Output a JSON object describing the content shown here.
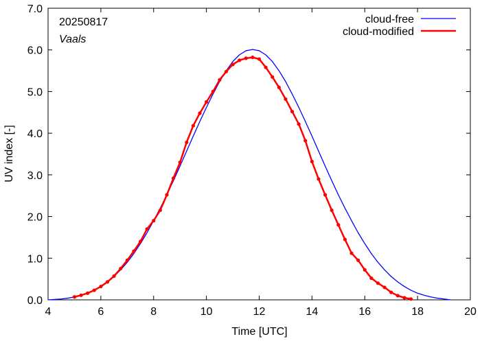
{
  "chart_data": {
    "type": "line",
    "xlabel": "Time  [UTC]",
    "ylabel": "UV index  [-]",
    "xlim": [
      4,
      20
    ],
    "ylim": [
      0,
      7
    ],
    "x_ticks": [
      4,
      6,
      8,
      10,
      12,
      14,
      16,
      18,
      20
    ],
    "y_ticks": [
      "0.0",
      "1.0",
      "2.0",
      "3.0",
      "4.0",
      "5.0",
      "6.0",
      "7.0"
    ],
    "grid": false,
    "legend_position": "top-right",
    "annotations": {
      "date": "20250817",
      "location": "Vaals"
    },
    "series": [
      {
        "name": "cloud-free",
        "color": "#0000ff",
        "markers": false,
        "x": [
          4.0,
          4.25,
          4.5,
          4.75,
          5.0,
          5.25,
          5.5,
          5.75,
          6.0,
          6.25,
          6.5,
          6.75,
          7.0,
          7.25,
          7.5,
          7.75,
          8.0,
          8.25,
          8.5,
          8.75,
          9.0,
          9.25,
          9.5,
          9.75,
          10.0,
          10.25,
          10.5,
          10.75,
          11.0,
          11.25,
          11.5,
          11.75,
          12.0,
          12.25,
          12.5,
          12.75,
          13.0,
          13.25,
          13.5,
          13.75,
          14.0,
          14.25,
          14.5,
          14.75,
          15.0,
          15.25,
          15.5,
          15.75,
          16.0,
          16.25,
          16.5,
          16.75,
          17.0,
          17.25,
          17.5,
          17.75,
          18.0,
          18.25,
          18.5,
          18.75,
          19.0,
          19.25
        ],
        "y": [
          0.0,
          0.01,
          0.02,
          0.04,
          0.07,
          0.11,
          0.16,
          0.23,
          0.32,
          0.43,
          0.56,
          0.72,
          0.9,
          1.11,
          1.35,
          1.61,
          1.9,
          2.2,
          2.52,
          2.86,
          3.21,
          3.57,
          3.93,
          4.28,
          4.62,
          4.94,
          5.24,
          5.5,
          5.72,
          5.88,
          5.98,
          6.01,
          5.98,
          5.88,
          5.72,
          5.5,
          5.24,
          4.94,
          4.62,
          4.28,
          3.93,
          3.57,
          3.21,
          2.86,
          2.52,
          2.2,
          1.9,
          1.61,
          1.35,
          1.11,
          0.9,
          0.72,
          0.56,
          0.43,
          0.32,
          0.23,
          0.16,
          0.11,
          0.07,
          0.04,
          0.02,
          0.0
        ]
      },
      {
        "name": "cloud-modified",
        "color": "#ff0000",
        "markers": true,
        "x": [
          5.0,
          5.25,
          5.5,
          5.75,
          6.0,
          6.25,
          6.5,
          6.75,
          7.0,
          7.25,
          7.5,
          7.75,
          8.0,
          8.25,
          8.5,
          8.75,
          9.0,
          9.25,
          9.5,
          9.75,
          10.0,
          10.25,
          10.5,
          10.75,
          11.0,
          11.25,
          11.5,
          11.75,
          12.0,
          12.25,
          12.5,
          12.75,
          13.0,
          13.25,
          13.5,
          13.75,
          14.0,
          14.25,
          14.5,
          14.75,
          15.0,
          15.25,
          15.5,
          15.75,
          16.0,
          16.25,
          16.5,
          16.75,
          17.0,
          17.25,
          17.5,
          17.75
        ],
        "y": [
          0.07,
          0.11,
          0.16,
          0.23,
          0.32,
          0.43,
          0.57,
          0.75,
          0.95,
          1.17,
          1.4,
          1.7,
          1.9,
          2.15,
          2.52,
          2.92,
          3.3,
          3.78,
          4.18,
          4.48,
          4.75,
          5.0,
          5.28,
          5.48,
          5.65,
          5.75,
          5.8,
          5.82,
          5.78,
          5.58,
          5.35,
          5.1,
          4.82,
          4.52,
          4.22,
          3.82,
          3.32,
          2.9,
          2.52,
          2.15,
          1.8,
          1.45,
          1.12,
          0.95,
          0.72,
          0.52,
          0.4,
          0.3,
          0.18,
          0.1,
          0.05,
          0.02
        ]
      }
    ]
  }
}
